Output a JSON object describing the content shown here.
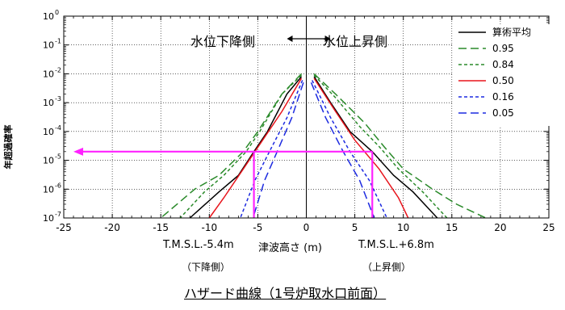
{
  "chart_data": {
    "type": "line",
    "title": "ハザード曲線（1号炉取水口前面）",
    "xlabel": "津波高さ (m)",
    "ylabel": "年超過確率",
    "xlim": [
      -25,
      25
    ],
    "ylim": [
      1e-07,
      1
    ],
    "yscale": "log",
    "x_ticks": [
      -25,
      -20,
      -15,
      -10,
      -5,
      0,
      5,
      10,
      15,
      20,
      25
    ],
    "x_tick_labels": [
      "-25",
      "-20",
      "-15",
      "-10",
      "-5",
      "0",
      "5",
      "10",
      "15",
      "20",
      "25"
    ],
    "y_ticks": [
      1,
      0.1,
      0.01,
      0.001,
      0.0001,
      1e-05,
      1e-06,
      1e-07
    ],
    "y_tick_labels": [
      {
        "base": "10",
        "exp": "0"
      },
      {
        "base": "10",
        "exp": "-1"
      },
      {
        "base": "10",
        "exp": "-2"
      },
      {
        "base": "10",
        "exp": "-3"
      },
      {
        "base": "10",
        "exp": "-4"
      },
      {
        "base": "10",
        "exp": "-5"
      },
      {
        "base": "10",
        "exp": "-6"
      },
      {
        "base": "10",
        "exp": "-7"
      }
    ],
    "grid": true,
    "legend_position": "top-right",
    "series": [
      {
        "name": "算術平均",
        "color": "#000000",
        "dash": "solid",
        "left": [
          [
            -0.5,
            0.008
          ],
          [
            -2,
            0.002
          ],
          [
            -4,
            0.0001
          ],
          [
            -5.4,
            2e-05
          ],
          [
            -7,
            3e-06
          ],
          [
            -9,
            8e-07
          ],
          [
            -11,
            2e-07
          ],
          [
            -12,
            1e-07
          ]
        ],
        "right": [
          [
            0.8,
            0.008
          ],
          [
            2.5,
            0.001
          ],
          [
            4.5,
            0.0001
          ],
          [
            6.8,
            2e-05
          ],
          [
            9,
            3e-06
          ],
          [
            11,
            8e-07
          ],
          [
            13.5,
            1e-07
          ]
        ]
      },
      {
        "name": "0.95",
        "color": "#2a8a2a",
        "dash": "long",
        "left": [
          [
            -0.5,
            0.01
          ],
          [
            -2.5,
            0.002
          ],
          [
            -5,
            0.0001
          ],
          [
            -6.5,
            2e-05
          ],
          [
            -9,
            3e-06
          ],
          [
            -11.5,
            1e-06
          ],
          [
            -15,
            1e-07
          ]
        ],
        "right": [
          [
            0.8,
            0.01
          ],
          [
            3,
            0.002
          ],
          [
            6,
            0.0002
          ],
          [
            8,
            3e-05
          ],
          [
            10,
            5e-06
          ],
          [
            13,
            1e-06
          ],
          [
            15.5,
            3e-07
          ],
          [
            18.5,
            1e-07
          ]
        ]
      },
      {
        "name": "0.84",
        "color": "#2a8a2a",
        "dash": "short",
        "left": [
          [
            -0.5,
            0.009
          ],
          [
            -2.5,
            0.002
          ],
          [
            -4.8,
            0.0001
          ],
          [
            -6.2,
            2e-05
          ],
          [
            -8.5,
            3e-06
          ],
          [
            -10.5,
            8e-07
          ],
          [
            -13,
            1e-07
          ]
        ],
        "right": [
          [
            0.8,
            0.009
          ],
          [
            3,
            0.0015
          ],
          [
            5.5,
            0.00015
          ],
          [
            7.5,
            3e-05
          ],
          [
            9.5,
            5e-06
          ],
          [
            12,
            8e-07
          ],
          [
            14.5,
            1e-07
          ]
        ]
      },
      {
        "name": "0.50",
        "color": "#e8141c",
        "dash": "solid",
        "left": [
          [
            -0.5,
            0.007
          ],
          [
            -2.5,
            0.0005
          ],
          [
            -4.5,
            5e-05
          ],
          [
            -6.5,
            5e-06
          ],
          [
            -8.5,
            5e-07
          ],
          [
            -10,
            1e-07
          ]
        ],
        "right": [
          [
            0.8,
            0.007
          ],
          [
            3,
            0.0005
          ],
          [
            5,
            5e-05
          ],
          [
            7.5,
            5e-06
          ],
          [
            9.5,
            5e-07
          ],
          [
            10.5,
            1e-07
          ]
        ]
      },
      {
        "name": "0.16",
        "color": "#1c2ae0",
        "dash": "short",
        "left": [
          [
            -0.4,
            0.006
          ],
          [
            -2,
            0.0003
          ],
          [
            -3.8,
            2e-05
          ],
          [
            -5.3,
            2e-06
          ],
          [
            -6.8,
            1e-07
          ]
        ],
        "right": [
          [
            0.6,
            0.006
          ],
          [
            2.5,
            0.0003
          ],
          [
            4.5,
            2e-05
          ],
          [
            6.5,
            2e-06
          ],
          [
            8.3,
            1e-07
          ]
        ]
      },
      {
        "name": "0.05",
        "color": "#1c2ae0",
        "dash": "long",
        "left": [
          [
            -0.3,
            0.005
          ],
          [
            -1.5,
            0.0003
          ],
          [
            -3,
            2e-05
          ],
          [
            -4.3,
            2e-06
          ],
          [
            -5.5,
            1e-07
          ]
        ],
        "right": [
          [
            0.5,
            0.005
          ],
          [
            2,
            0.0003
          ],
          [
            3.8,
            2e-05
          ],
          [
            5.5,
            2e-06
          ],
          [
            7,
            1e-07
          ]
        ]
      }
    ],
    "reference_lines": {
      "color": "#ff22ff",
      "horizontal_y": 2e-05,
      "left_x": -5.4,
      "right_x": 6.8,
      "arrow_to_x": -24
    },
    "direction_arrow": {
      "from_x": -2,
      "to_x": 2.5
    },
    "annotations": {
      "lowering": "水位下降側",
      "rising": "水位上昇側",
      "limit_left": "T.M.S.L.-5.4m",
      "limit_right": "T.M.S.L.+6.8m",
      "side_left": "（下降側）",
      "side_right": "（上昇側）"
    }
  }
}
